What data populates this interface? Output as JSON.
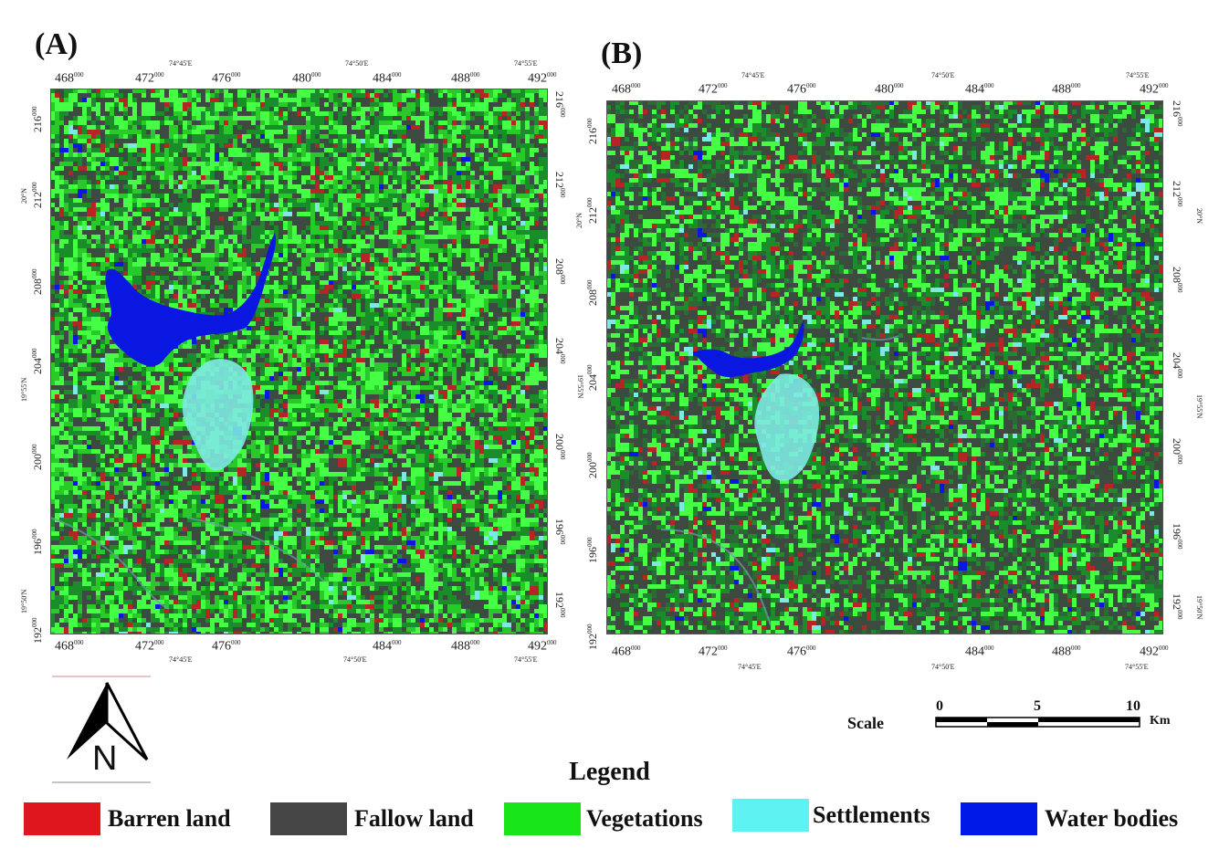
{
  "panels": [
    {
      "label": "(A)",
      "top_easting": [
        "468",
        "472",
        "476",
        "480",
        "484",
        "488",
        "492"
      ],
      "top_lon": [
        "74°45'E",
        "74°50'E",
        "74°55'E"
      ],
      "bottom_easting": [
        "468",
        "472",
        "476",
        "484",
        "488",
        "492"
      ],
      "bottom_lon": [
        "74°45'E",
        "74°50'E",
        "74°55'E"
      ],
      "northing": [
        "216",
        "212",
        "208",
        "204",
        "200",
        "196",
        "192"
      ],
      "lat": [
        "20°N",
        "19°55'N",
        "19°50'N"
      ],
      "superscript": "000"
    },
    {
      "label": "(B)",
      "top_easting": [
        "468",
        "472",
        "476",
        "480",
        "484",
        "488",
        "492"
      ],
      "top_lon": [
        "74°45'E",
        "74°50'E",
        "74°55'E"
      ],
      "bottom_easting": [
        "468",
        "472",
        "476",
        "484",
        "488",
        "492"
      ],
      "bottom_lon": [
        "74°45'E",
        "74°50'E",
        "74°55'E"
      ],
      "northing": [
        "216",
        "212",
        "208",
        "204",
        "200",
        "196",
        "192"
      ],
      "lat": [
        "20°N",
        "19°55'N",
        "19°50'N"
      ],
      "superscript": "000"
    }
  ],
  "north_arrow": {
    "letter": "N",
    "icon": "north-arrow-icon"
  },
  "scale": {
    "label": "Scale",
    "ticks": [
      "0",
      "5",
      "10"
    ],
    "unit": "Km"
  },
  "legend": {
    "title": "Legend",
    "items": [
      {
        "label": "Barren land",
        "color": "#e0161e"
      },
      {
        "label": "Fallow land",
        "color": "#454545"
      },
      {
        "label": "Vegetations",
        "color": "#19e619"
      },
      {
        "label": "Settlements",
        "color": "#5ff2f2"
      },
      {
        "label": "Water bodies",
        "color": "#0019e6"
      }
    ]
  },
  "colors": {
    "vegetation": "#2fd22f",
    "vegetation_dark": "#1a8c2a",
    "fallow": "#3d4a40",
    "water": "#0a17e0",
    "settlement": "#7de9e2",
    "barren": "#b52525"
  }
}
